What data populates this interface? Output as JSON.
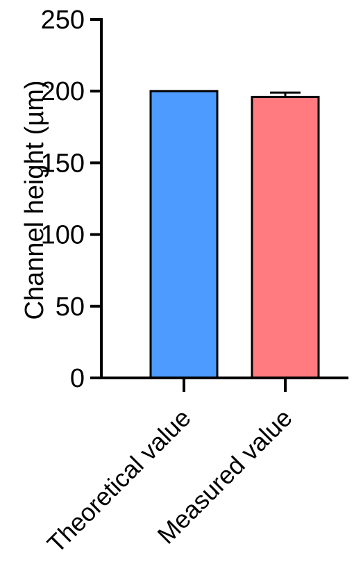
{
  "chart_data": {
    "type": "bar",
    "title": "",
    "xlabel": "",
    "ylabel": "Channel height (µm)",
    "ylim": [
      0,
      250
    ],
    "yticks": [
      0,
      50,
      100,
      150,
      200,
      250
    ],
    "categories": [
      "Theoretical value",
      "Measured value"
    ],
    "values": [
      200,
      196
    ],
    "errors": [
      0,
      3
    ],
    "bar_colors": [
      "#4d9bff",
      "#ff7b7f"
    ],
    "grid": false,
    "legend": "none"
  }
}
